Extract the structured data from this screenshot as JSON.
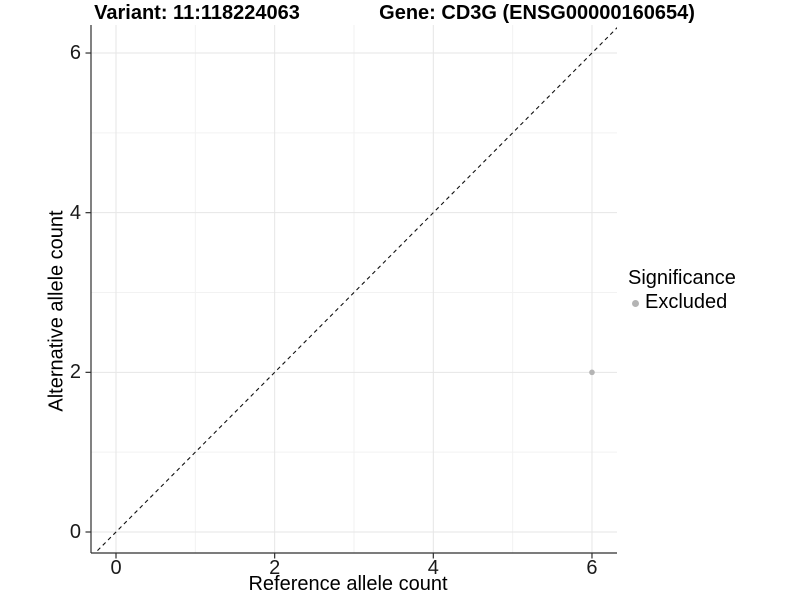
{
  "titles": {
    "variant": "Variant: 11:118224063",
    "gene": "Gene: CD3G (ENSG00000160654)"
  },
  "chart_data": {
    "type": "scatter",
    "title_left": "Variant: 11:118224063",
    "title_right": "Gene: CD3G (ENSG00000160654)",
    "xlabel": "Reference allele count",
    "ylabel": "Alternative allele count",
    "xlim": [
      -0.32,
      6.35
    ],
    "ylim": [
      -0.26,
      6.35
    ],
    "x_ticks": [
      0,
      2,
      4,
      6
    ],
    "y_ticks": [
      0,
      2,
      4,
      6
    ],
    "grid_lines_at": [
      0,
      1,
      2,
      3,
      4,
      5,
      6
    ],
    "grid": "major (even) and minor (odd) light-gray lines on white panel",
    "points": [
      {
        "x": 6,
        "y": 2,
        "series": "Excluded"
      }
    ],
    "point_color": "#b4b4b4",
    "point_radius": 2.8,
    "reference_line": {
      "type": "identity y = x",
      "style": "dashed",
      "color": "#111111"
    },
    "legend": {
      "title": "Significance",
      "position": "right",
      "entries": [
        {
          "label": "Excluded",
          "color": "#b4b4b4",
          "marker": "circle"
        }
      ]
    },
    "colors": {
      "axis_line": "#2e2e2e",
      "tick_mark": "#2e2e2e",
      "grid_major": "#e6e6e6",
      "grid_minor": "#f2f2f2",
      "text": "#000000",
      "background": "#ffffff"
    }
  }
}
